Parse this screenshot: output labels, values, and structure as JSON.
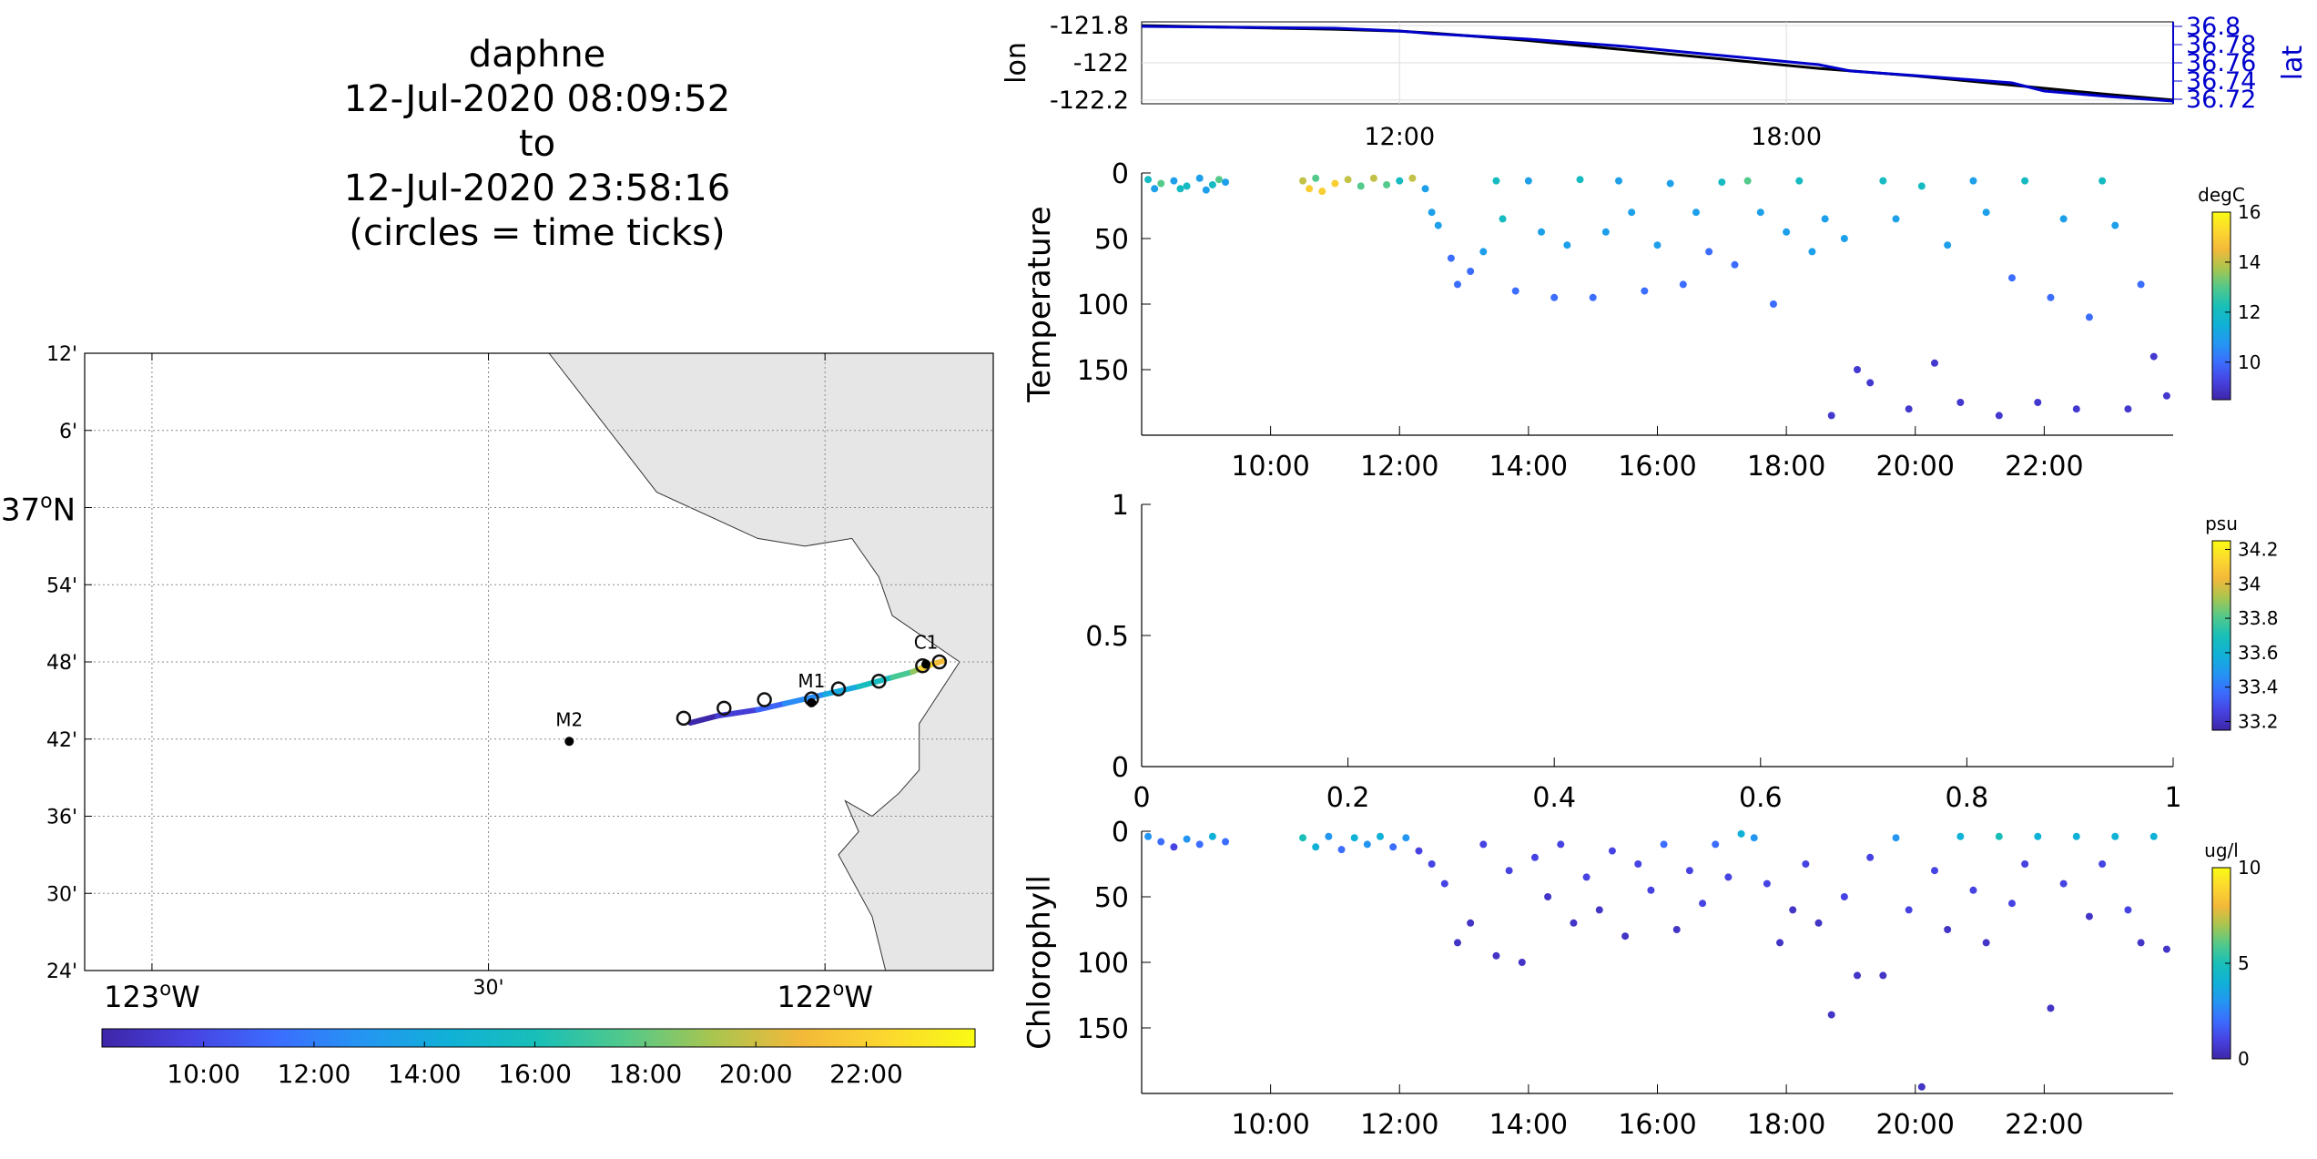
{
  "title_lines": [
    "daphne",
    "12-Jul-2020 08:09:52",
    "to",
    "12-Jul-2020 23:58:16",
    "(circles = time ticks)"
  ],
  "colormap": [
    "#3e26a8",
    "#4743e2",
    "#3b6dfe",
    "#2496f2",
    "#10b1d6",
    "#19bfb7",
    "#53c98a",
    "#a9c54f",
    "#f3b93a",
    "#fcd82f",
    "#f9fb14"
  ],
  "chart_data": [
    {
      "type": "map",
      "name": "track-map",
      "lon_range": [
        -123.1,
        -121.75
      ],
      "lat_range": [
        36.4,
        37.2
      ],
      "lat_ticks": [
        {
          "lat": 37.2,
          "label": "12'"
        },
        {
          "lat": 37.1,
          "label": "6'"
        },
        {
          "lat": 37.0,
          "label": "37",
          "sup": "o",
          "suffix": "N"
        },
        {
          "lat": 36.9,
          "label": "54'"
        },
        {
          "lat": 36.8,
          "label": "48'"
        },
        {
          "lat": 36.7,
          "label": "42'"
        },
        {
          "lat": 36.6,
          "label": "36'"
        },
        {
          "lat": 36.5,
          "label": "30'"
        },
        {
          "lat": 36.4,
          "label": "24'"
        }
      ],
      "lon_ticks": [
        {
          "lon": -123.0,
          "label": "123",
          "sup": "o",
          "suffix": "W",
          "big": true
        },
        {
          "lon": -122.5,
          "label": "30'",
          "big": false
        },
        {
          "lon": -122.0,
          "label": "122",
          "sup": "o",
          "suffix": "W",
          "big": true
        }
      ],
      "coast": [
        [
          -122.41,
          37.2
        ],
        [
          -122.25,
          37.02
        ],
        [
          -122.1,
          36.96
        ],
        [
          -122.03,
          36.95
        ],
        [
          -121.96,
          36.96
        ],
        [
          -121.92,
          36.91
        ],
        [
          -121.9,
          36.86
        ],
        [
          -121.8,
          36.8
        ],
        [
          -121.86,
          36.72
        ],
        [
          -121.86,
          36.66
        ],
        [
          -121.89,
          36.63
        ],
        [
          -121.93,
          36.6
        ],
        [
          -121.97,
          36.62
        ],
        [
          -121.95,
          36.58
        ],
        [
          -121.98,
          36.55
        ],
        [
          -121.93,
          36.47
        ],
        [
          -121.91,
          36.4
        ]
      ],
      "stations": [
        {
          "name": "C1",
          "lon": -121.85,
          "lat": 36.797
        },
        {
          "name": "M1",
          "lon": -122.02,
          "lat": 36.747
        },
        {
          "name": "M2",
          "lon": -122.38,
          "lat": 36.697
        }
      ],
      "track": [
        [
          -122.2,
          36.721,
          8.2
        ],
        [
          -122.16,
          36.73,
          9.4
        ],
        [
          -122.1,
          36.738,
          11.0
        ],
        [
          -122.06,
          36.746,
          12.5
        ],
        [
          -122.0,
          36.758,
          14.0
        ],
        [
          -121.95,
          36.768,
          15.7
        ],
        [
          -121.9,
          36.78,
          17.3
        ],
        [
          -121.87,
          36.787,
          18.8
        ],
        [
          -121.85,
          36.795,
          19.8
        ],
        [
          -121.825,
          36.801,
          21.0
        ],
        [
          -121.84,
          36.797,
          22.2
        ],
        [
          -121.86,
          36.79,
          23.97
        ]
      ],
      "time_ticks": [
        [
          -122.21,
          36.727
        ],
        [
          -122.15,
          36.74
        ],
        [
          -122.09,
          36.751
        ],
        [
          -122.02,
          36.752
        ],
        [
          -121.98,
          36.765
        ],
        [
          -121.92,
          36.775
        ],
        [
          -121.855,
          36.795
        ],
        [
          -121.83,
          36.8
        ]
      ],
      "colorbar": {
        "ticks": [
          10,
          12,
          14,
          16,
          18,
          20,
          22
        ],
        "labels": [
          "10:00",
          "12:00",
          "14:00",
          "16:00",
          "18:00",
          "20:00",
          "22:00"
        ],
        "range": [
          8.16,
          23.97
        ]
      }
    },
    {
      "type": "line",
      "name": "position-plot",
      "ylabel": "lon",
      "y2label": "lat",
      "xlim": [
        8.0,
        24.0
      ],
      "x_ticks": [
        12,
        18
      ],
      "x_tick_labels": [
        "12:00",
        "18:00"
      ],
      "ylim": [
        -122.22,
        -121.78
      ],
      "y_ticks": [
        -121.8,
        -122.0,
        -122.2
      ],
      "y_tick_labels": [
        "-121.8",
        "-122",
        "-122.2"
      ],
      "y2lim": [
        36.715,
        36.805
      ],
      "y2_ticks": [
        36.8,
        36.78,
        36.76,
        36.74,
        36.72
      ],
      "y2_tick_labels": [
        "36.8",
        "36.78",
        "36.76",
        "36.74",
        "36.72"
      ],
      "series": [
        {
          "axis": "left",
          "color": "#000000",
          "x": [
            8.0,
            9.5,
            11.0,
            12.0,
            12.5,
            14.0,
            15.5,
            17.0,
            18.5,
            20.0,
            21.5,
            23.0,
            24.0
          ],
          "y": [
            -121.8,
            -121.81,
            -121.82,
            -121.83,
            -121.84,
            -121.88,
            -121.93,
            -121.98,
            -122.03,
            -122.07,
            -122.12,
            -122.17,
            -122.2
          ]
        },
        {
          "axis": "right",
          "color": "#0000cc",
          "x": [
            8.0,
            9.5,
            11.0,
            12.0,
            12.5,
            14.0,
            15.5,
            17.0,
            18.5,
            19.0,
            20.0,
            21.5,
            22.0,
            23.0,
            24.0
          ],
          "y": [
            36.8,
            36.799,
            36.798,
            36.795,
            36.792,
            36.786,
            36.778,
            36.768,
            36.758,
            36.751,
            36.746,
            36.738,
            36.729,
            36.723,
            36.718
          ]
        }
      ]
    },
    {
      "type": "scatter",
      "name": "temperature-plot",
      "ylabel": "Temperature",
      "xlim": [
        8.0,
        24.0
      ],
      "x_ticks": [
        10,
        12,
        14,
        16,
        18,
        20,
        22
      ],
      "x_tick_labels": [
        "10:00",
        "12:00",
        "14:00",
        "16:00",
        "18:00",
        "20:00",
        "22:00"
      ],
      "ylim": [
        0,
        200
      ],
      "y_reversed": true,
      "y_ticks": [
        0,
        50,
        100,
        150
      ],
      "y_tick_labels": [
        "0",
        "50",
        "100",
        "150"
      ],
      "colorbar": {
        "unit": "degC",
        "range": [
          8.5,
          16
        ],
        "ticks": [
          10,
          12,
          14,
          16
        ],
        "labels": [
          "10",
          "12",
          "14",
          "16"
        ]
      },
      "points": [
        [
          8.1,
          5,
          12
        ],
        [
          8.3,
          8,
          13
        ],
        [
          8.5,
          6,
          11
        ],
        [
          8.7,
          10,
          12
        ],
        [
          8.9,
          4,
          11
        ],
        [
          9.1,
          9,
          12
        ],
        [
          9.3,
          7,
          11
        ],
        [
          8.2,
          12,
          11
        ],
        [
          8.6,
          12,
          12
        ],
        [
          9.0,
          13,
          11
        ],
        [
          9.2,
          5,
          13
        ],
        [
          10.5,
          6,
          14
        ],
        [
          10.6,
          12,
          15
        ],
        [
          10.7,
          4,
          13
        ],
        [
          10.8,
          14,
          15
        ],
        [
          11.0,
          8,
          15
        ],
        [
          11.2,
          5,
          14
        ],
        [
          11.4,
          10,
          13
        ],
        [
          11.6,
          4,
          14
        ],
        [
          11.8,
          9,
          13
        ],
        [
          12.0,
          6,
          12
        ],
        [
          12.2,
          4,
          14
        ],
        [
          12.4,
          12,
          11
        ],
        [
          12.5,
          30,
          11
        ],
        [
          12.6,
          40,
          11
        ],
        [
          12.8,
          65,
          10
        ],
        [
          12.9,
          85,
          10
        ],
        [
          13.1,
          75,
          10
        ],
        [
          13.3,
          60,
          11
        ],
        [
          13.5,
          6,
          12
        ],
        [
          13.6,
          35,
          12
        ],
        [
          13.8,
          90,
          10
        ],
        [
          14.0,
          6,
          11
        ],
        [
          14.2,
          45,
          11
        ],
        [
          14.4,
          95,
          10
        ],
        [
          14.6,
          55,
          11
        ],
        [
          14.8,
          5,
          12
        ],
        [
          15.0,
          95,
          10
        ],
        [
          15.2,
          45,
          11
        ],
        [
          15.4,
          6,
          11
        ],
        [
          15.6,
          30,
          11
        ],
        [
          15.8,
          90,
          10
        ],
        [
          16.0,
          55,
          11
        ],
        [
          16.2,
          8,
          11
        ],
        [
          16.4,
          85,
          10
        ],
        [
          16.6,
          30,
          11
        ],
        [
          16.8,
          60,
          10
        ],
        [
          17.0,
          7,
          12
        ],
        [
          17.2,
          70,
          10
        ],
        [
          17.4,
          6,
          13
        ],
        [
          17.6,
          30,
          11
        ],
        [
          17.8,
          100,
          10
        ],
        [
          18.0,
          45,
          11
        ],
        [
          18.2,
          6,
          12
        ],
        [
          18.4,
          60,
          11
        ],
        [
          18.6,
          35,
          11
        ],
        [
          18.7,
          185,
          9
        ],
        [
          18.9,
          50,
          11
        ],
        [
          19.1,
          150,
          9
        ],
        [
          19.3,
          160,
          9
        ],
        [
          19.5,
          6,
          12
        ],
        [
          19.7,
          35,
          11
        ],
        [
          19.9,
          180,
          9
        ],
        [
          20.1,
          10,
          12
        ],
        [
          20.3,
          145,
          9
        ],
        [
          20.5,
          55,
          11
        ],
        [
          20.7,
          175,
          9
        ],
        [
          20.9,
          6,
          11
        ],
        [
          21.1,
          30,
          11
        ],
        [
          21.3,
          185,
          9
        ],
        [
          21.5,
          80,
          10
        ],
        [
          21.7,
          6,
          12
        ],
        [
          21.9,
          175,
          9
        ],
        [
          22.1,
          95,
          10
        ],
        [
          22.3,
          35,
          11
        ],
        [
          22.5,
          180,
          9
        ],
        [
          22.7,
          110,
          10
        ],
        [
          22.9,
          6,
          12
        ],
        [
          23.1,
          40,
          11
        ],
        [
          23.3,
          180,
          9
        ],
        [
          23.5,
          85,
          10
        ],
        [
          23.7,
          140,
          9
        ],
        [
          23.9,
          170,
          9
        ]
      ]
    },
    {
      "type": "scatter",
      "name": "salinity-plot",
      "xlim": [
        0,
        1
      ],
      "x_ticks": [
        0,
        0.2,
        0.4,
        0.6,
        0.8,
        1
      ],
      "x_tick_labels": [
        "0",
        "0.2",
        "0.4",
        "0.6",
        "0.8",
        "1"
      ],
      "ylim": [
        0,
        1
      ],
      "y_ticks": [
        1,
        0.5,
        0
      ],
      "y_tick_labels": [
        "1",
        "0.5",
        "0"
      ],
      "colorbar": {
        "unit": "psu",
        "range": [
          33.15,
          34.25
        ],
        "ticks": [
          34.2,
          34.0,
          33.8,
          33.6,
          33.4,
          33.2
        ],
        "labels": [
          "34.2",
          "34",
          "33.8",
          "33.6",
          "33.4",
          "33.2"
        ]
      },
      "points": []
    },
    {
      "type": "scatter",
      "name": "chlorophyll-plot",
      "ylabel": "Chlorophyll",
      "xlim": [
        8.0,
        24.0
      ],
      "x_ticks": [
        10,
        12,
        14,
        16,
        18,
        20,
        22
      ],
      "x_tick_labels": [
        "10:00",
        "12:00",
        "14:00",
        "16:00",
        "18:00",
        "20:00",
        "22:00"
      ],
      "ylim": [
        0,
        200
      ],
      "y_reversed": true,
      "y_ticks": [
        0,
        50,
        100,
        150
      ],
      "y_tick_labels": [
        "0",
        "50",
        "100",
        "150"
      ],
      "colorbar": {
        "unit": "ug/l",
        "range": [
          0,
          10
        ],
        "ticks": [
          10,
          5,
          0
        ],
        "labels": [
          "10",
          "5",
          "0"
        ]
      },
      "points": [
        [
          8.1,
          4,
          3
        ],
        [
          8.3,
          8,
          2
        ],
        [
          8.5,
          12,
          1
        ],
        [
          8.7,
          6,
          3
        ],
        [
          8.9,
          10,
          2
        ],
        [
          9.1,
          4,
          4
        ],
        [
          9.3,
          8,
          2
        ],
        [
          10.5,
          5,
          5
        ],
        [
          10.7,
          12,
          4
        ],
        [
          10.9,
          4,
          3
        ],
        [
          11.1,
          14,
          2
        ],
        [
          11.3,
          5,
          4
        ],
        [
          11.5,
          10,
          3
        ],
        [
          11.7,
          4,
          4
        ],
        [
          11.9,
          12,
          2
        ],
        [
          12.1,
          5,
          3
        ],
        [
          12.3,
          15,
          1
        ],
        [
          12.5,
          25,
          1
        ],
        [
          12.7,
          40,
          1
        ],
        [
          12.9,
          85,
          0.5
        ],
        [
          13.1,
          70,
          0.5
        ],
        [
          13.3,
          10,
          1
        ],
        [
          13.5,
          95,
          0.5
        ],
        [
          13.7,
          30,
          1
        ],
        [
          13.9,
          100,
          0.5
        ],
        [
          14.1,
          20,
          1
        ],
        [
          14.3,
          50,
          0.5
        ],
        [
          14.5,
          10,
          1
        ],
        [
          14.7,
          70,
          0.5
        ],
        [
          14.9,
          35,
          1
        ],
        [
          15.1,
          60,
          0.5
        ],
        [
          15.3,
          15,
          1
        ],
        [
          15.5,
          80,
          0.5
        ],
        [
          15.7,
          25,
          1
        ],
        [
          15.9,
          45,
          1
        ],
        [
          16.1,
          10,
          2
        ],
        [
          16.3,
          75,
          0.5
        ],
        [
          16.5,
          30,
          1
        ],
        [
          16.7,
          55,
          1
        ],
        [
          16.9,
          10,
          2
        ],
        [
          17.1,
          35,
          1
        ],
        [
          17.3,
          2,
          4
        ],
        [
          17.5,
          5,
          3
        ],
        [
          17.7,
          40,
          1
        ],
        [
          17.9,
          85,
          0.5
        ],
        [
          18.1,
          60,
          0.5
        ],
        [
          18.3,
          25,
          1
        ],
        [
          18.5,
          70,
          0.5
        ],
        [
          18.7,
          140,
          0.5
        ],
        [
          18.9,
          50,
          1
        ],
        [
          19.1,
          110,
          0.5
        ],
        [
          19.3,
          20,
          1
        ],
        [
          19.5,
          110,
          0.5
        ],
        [
          19.7,
          5,
          3
        ],
        [
          19.9,
          60,
          1
        ],
        [
          20.1,
          195,
          0.5
        ],
        [
          20.3,
          30,
          1
        ],
        [
          20.5,
          75,
          0.5
        ],
        [
          20.7,
          4,
          4
        ],
        [
          20.9,
          45,
          1
        ],
        [
          21.1,
          85,
          0.5
        ],
        [
          21.3,
          4,
          5
        ],
        [
          21.5,
          55,
          1
        ],
        [
          21.7,
          25,
          1
        ],
        [
          21.9,
          4,
          4
        ],
        [
          22.1,
          135,
          0.5
        ],
        [
          22.3,
          40,
          1
        ],
        [
          22.5,
          4,
          4
        ],
        [
          22.7,
          65,
          0.5
        ],
        [
          22.9,
          25,
          1
        ],
        [
          23.1,
          4,
          4
        ],
        [
          23.3,
          60,
          1
        ],
        [
          23.5,
          85,
          0.5
        ],
        [
          23.7,
          4,
          4
        ],
        [
          23.9,
          90,
          0.5
        ]
      ]
    }
  ]
}
